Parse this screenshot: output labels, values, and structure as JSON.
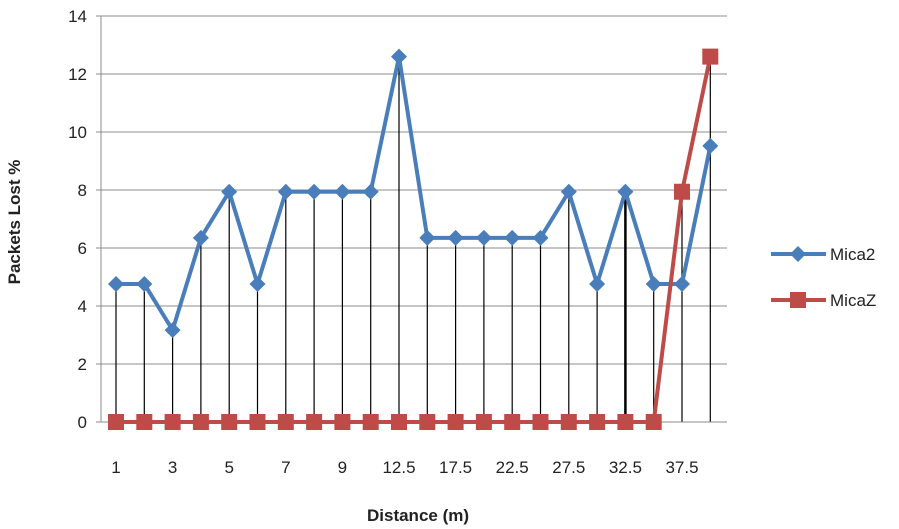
{
  "chart_data": {
    "type": "line",
    "title": "",
    "xlabel": "Distance  (m)",
    "ylabel": "Packets Lost %",
    "ylim": [
      0,
      14
    ],
    "yticks": [
      "0",
      "2",
      "4",
      "6",
      "8",
      "10",
      "12",
      "14"
    ],
    "x_tick_labels": [
      "1",
      "3",
      "5",
      "7",
      "9",
      "12.5",
      "17.5",
      "22.5",
      "27.5",
      "32.5",
      "37.5"
    ],
    "categories": [
      "1",
      "2",
      "3",
      "4",
      "5",
      "6",
      "7",
      "8",
      "9",
      "10",
      "12.5",
      "15",
      "17.5",
      "20",
      "22.5",
      "25",
      "27.5",
      "30",
      "32.5",
      "35",
      "37.5",
      "40"
    ],
    "grid": true,
    "legend_position": "right",
    "drop_lines": true,
    "series": [
      {
        "name": "Mica2",
        "color": "#4A7EBB",
        "marker": "diamond",
        "values": [
          4.76,
          4.76,
          3.17,
          6.35,
          7.94,
          4.76,
          7.94,
          7.94,
          7.94,
          7.94,
          12.6,
          6.35,
          6.35,
          6.35,
          6.35,
          6.35,
          7.94,
          4.76,
          7.94,
          4.76,
          4.76,
          9.52
        ]
      },
      {
        "name": "MicaZ",
        "color": "#BE4B48",
        "marker": "square",
        "values": [
          0,
          0,
          0,
          0,
          0,
          0,
          0,
          0,
          0,
          0,
          0,
          0,
          0,
          0,
          0,
          0,
          0,
          0,
          0,
          0,
          7.94,
          12.6
        ]
      }
    ]
  }
}
